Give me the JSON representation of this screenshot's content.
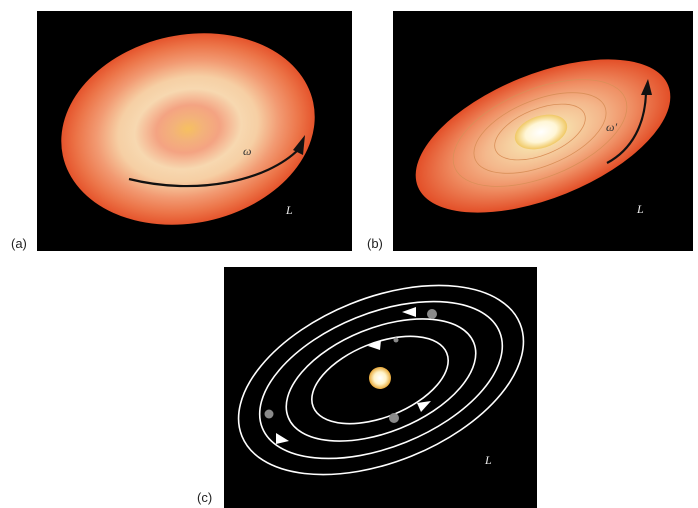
{
  "panels": {
    "a": {
      "caption": "(a)",
      "omega_label": "ω",
      "L_label": "L"
    },
    "b": {
      "caption": "(b)",
      "omega_label": "ω′",
      "L_label": "L"
    },
    "c": {
      "caption": "(c)",
      "L_label": "L"
    }
  },
  "colors": {
    "background": "#000000",
    "disk_outer": "#e8552d",
    "disk_mid": "#f4a27a",
    "disk_inner": "#f8dcaa",
    "core": "#fff6cc",
    "orbit": "#ffffff",
    "planet": "#8a8a8a"
  }
}
